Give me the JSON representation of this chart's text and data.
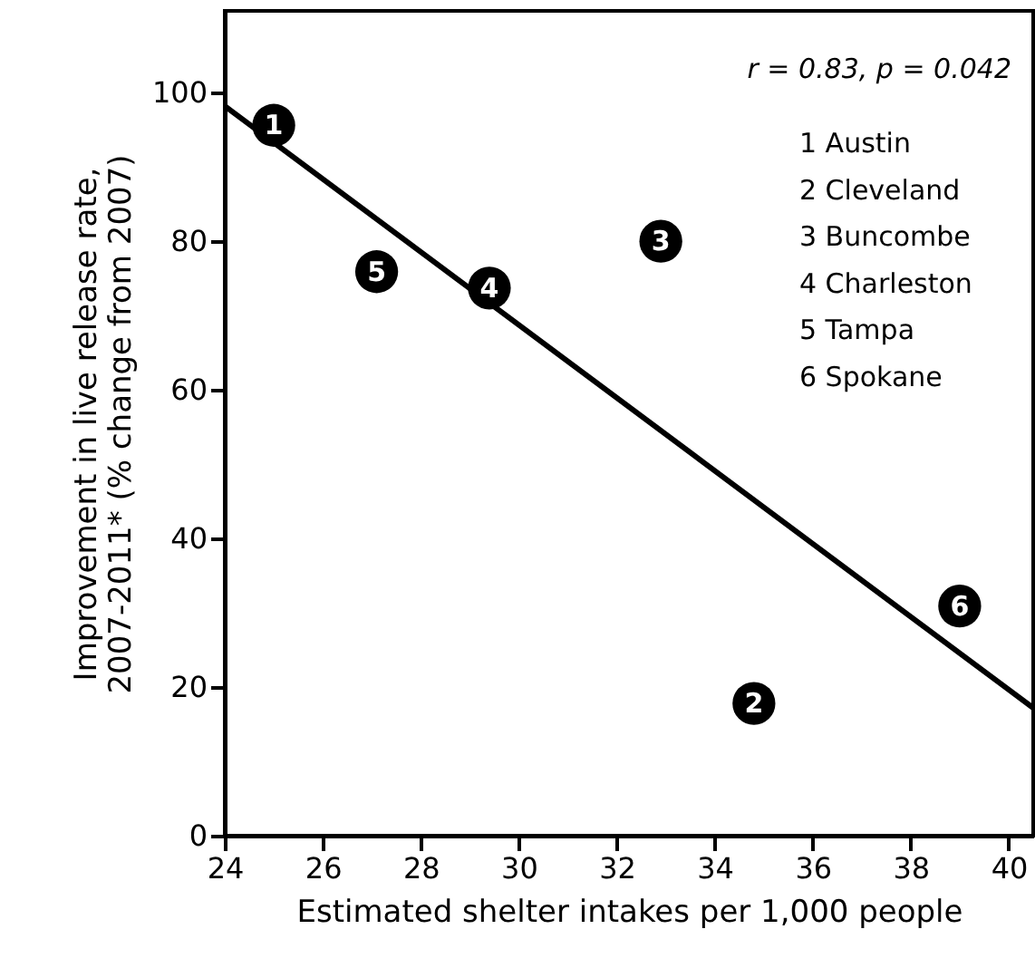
{
  "chart_data": {
    "type": "scatter",
    "xlabel": "Estimated shelter intakes per 1,000 people",
    "ylabel": "Improvement in live release rate,\n2007-2011* (% change from 2007)",
    "xlim": [
      24,
      40.5
    ],
    "xticks": [
      24,
      26,
      28,
      30,
      32,
      34,
      36,
      38,
      40
    ],
    "ylim": [
      0,
      111
    ],
    "yticks": [
      0,
      20,
      40,
      60,
      80,
      100
    ],
    "marker": "circle",
    "series": [
      {
        "type": "scatter",
        "color": "#000000",
        "x": [
          25.0,
          34.8,
          32.9,
          29.4,
          27.1,
          39.0
        ],
        "values": [
          95.6,
          17.8,
          80.0,
          73.7,
          75.9,
          30.9
        ]
      },
      {
        "type": "line",
        "color": "#000000",
        "marker": "none",
        "line_style": "solid",
        "x": [
          24,
          40.5
        ],
        "values": [
          98.2,
          17.2
        ]
      }
    ],
    "annotations": [
      "r = 0.83, p = 0.042",
      "1  Austin",
      "2  Cleveland",
      "3  Buncombe",
      "4  Charleston",
      "5  Tampa",
      "6  Spokane",
      {
        "text": "1",
        "x": 25.0,
        "y": 95.6
      },
      {
        "text": "2",
        "x": 34.8,
        "y": 17.8
      },
      {
        "text": "3",
        "x": 32.9,
        "y": 80.0
      },
      {
        "text": "4",
        "x": 29.4,
        "y": 73.7
      },
      {
        "text": "5",
        "x": 27.1,
        "y": 75.9
      },
      {
        "text": "6",
        "x": 39.0,
        "y": 30.9
      }
    ]
  }
}
